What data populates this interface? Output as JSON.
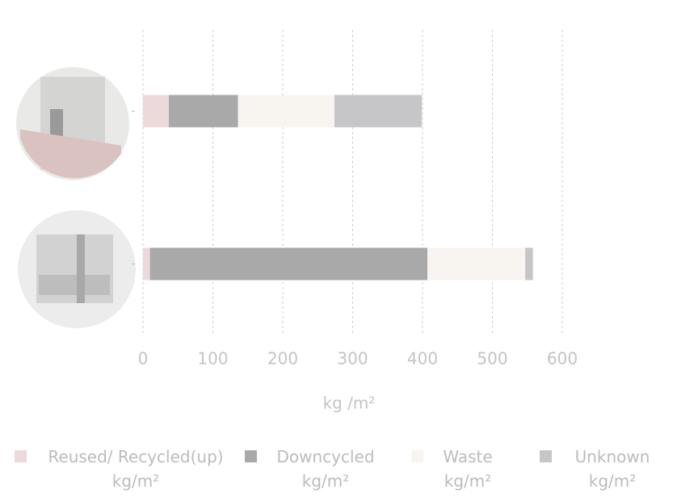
{
  "chart_data": {
    "type": "bar",
    "orientation": "horizontal",
    "stacked": true,
    "categories": [
      null,
      null
    ],
    "series": [
      {
        "name": "Reused/ Recycled(up) kg/m²",
        "color": "#ecdadb",
        "values": [
          37,
          10
        ]
      },
      {
        "name": "Downcycled kg/m²",
        "color": "#a9a9a9",
        "values": [
          99,
          397
        ]
      },
      {
        "name": "Waste kg/m²",
        "color": "#f8f4f0",
        "values": [
          138,
          140
        ]
      },
      {
        "name": "Unknown kg/m²",
        "color": "#c6c6c8",
        "values": [
          125,
          11
        ]
      }
    ],
    "xlabel": "kg /m²",
    "xlim": [
      0,
      600
    ],
    "xticks": [
      0,
      100,
      200,
      300,
      400,
      500,
      600
    ],
    "grid": true
  }
}
